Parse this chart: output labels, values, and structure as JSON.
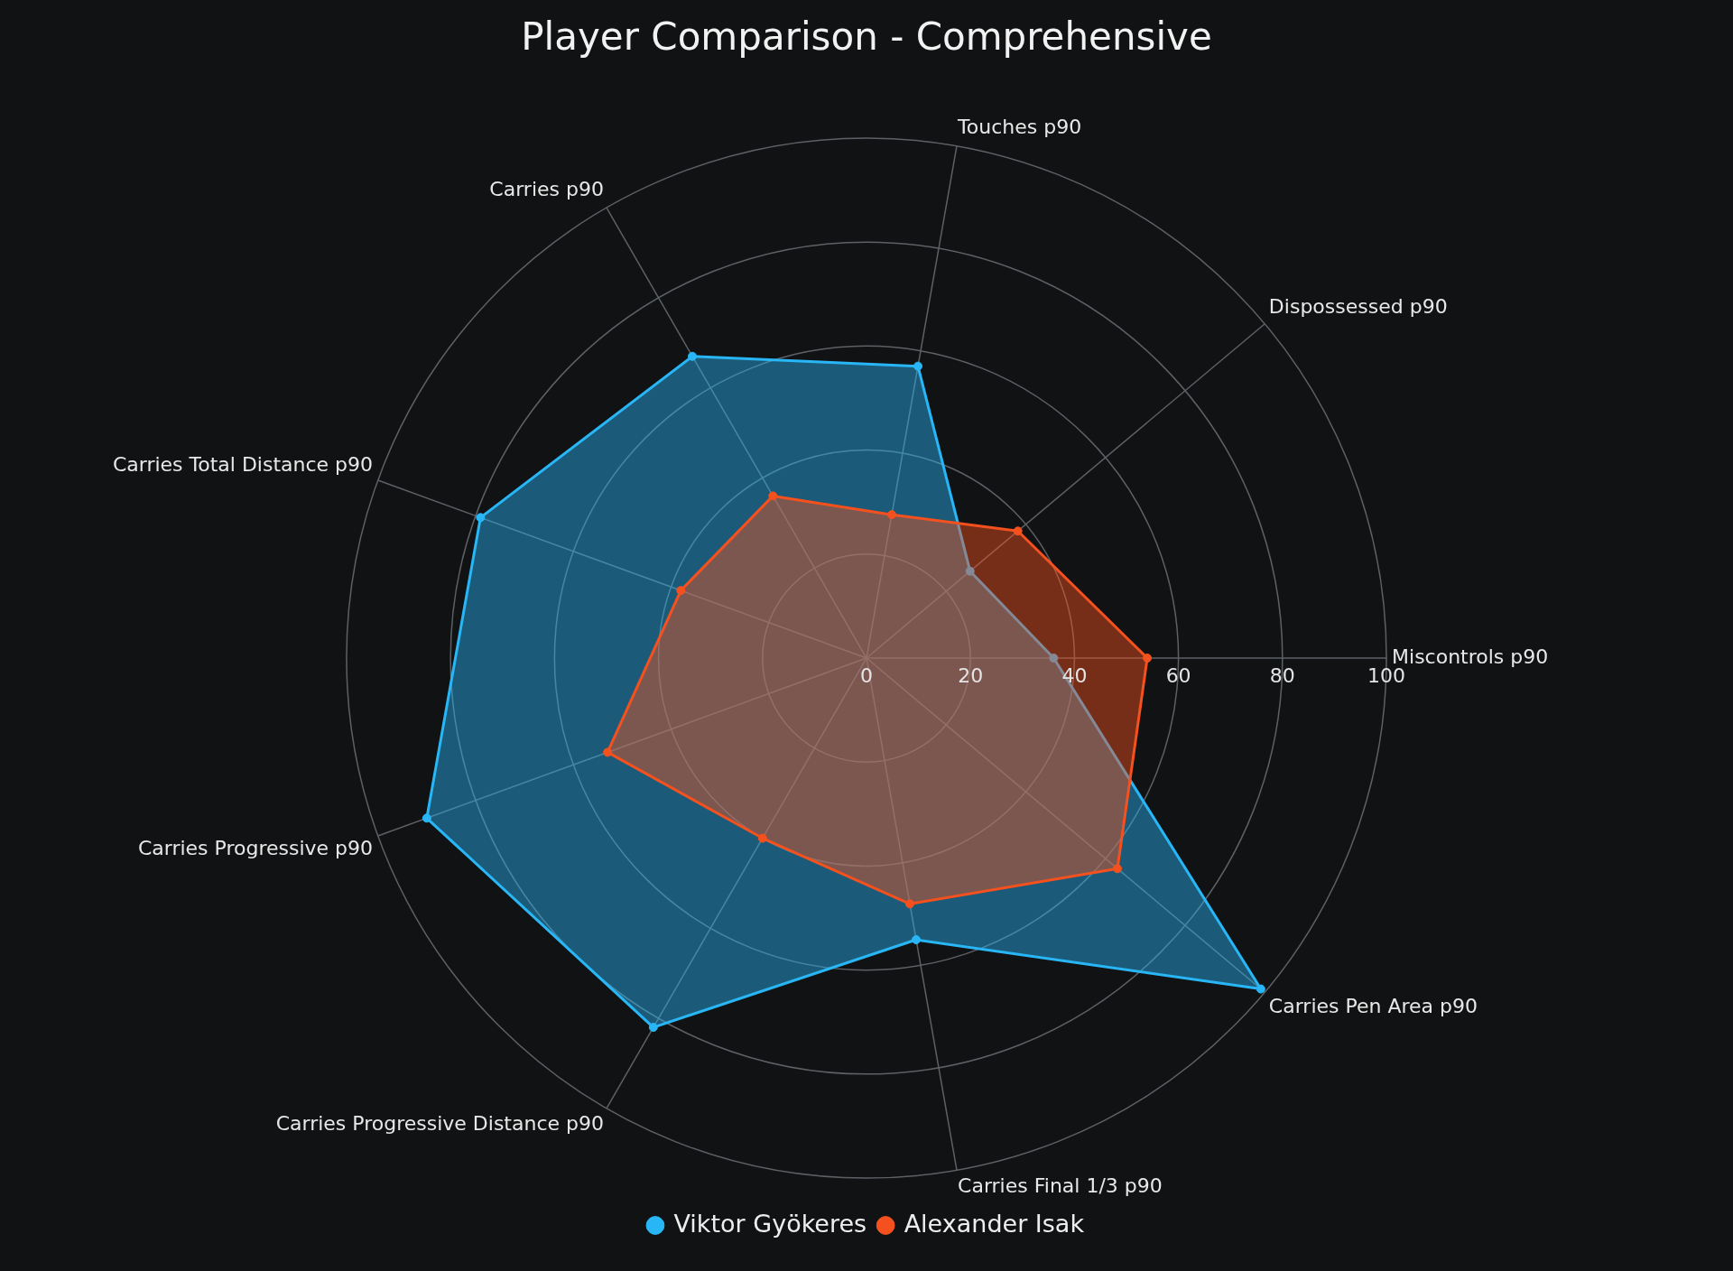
{
  "chart_data": {
    "type": "radar",
    "title": "Player Comparison - Comprehensive",
    "categories": [
      "Touches p90",
      "Dispossessed p90",
      "Miscontrols p90",
      "Carries Pen Area p90",
      "Carries Final 1/3 p90",
      "Carries Progressive Distance p90",
      "Carries Progressive p90",
      "Carries Total Distance p90",
      "Carries p90"
    ],
    "series": [
      {
        "name": "Viktor Gyökeres",
        "color": "#29b6f6",
        "values": [
          57,
          26,
          36,
          99,
          55,
          82,
          90,
          79,
          67
        ]
      },
      {
        "name": "Alexander Isak",
        "color": "#f4511e",
        "values": [
          28,
          38,
          54,
          63,
          48,
          40,
          53,
          38,
          36
        ]
      }
    ],
    "ylim": [
      0,
      100
    ],
    "yticks": [
      0,
      20,
      40,
      60,
      80,
      100
    ],
    "grid": true,
    "legend": "bottom",
    "marker": "circle"
  }
}
